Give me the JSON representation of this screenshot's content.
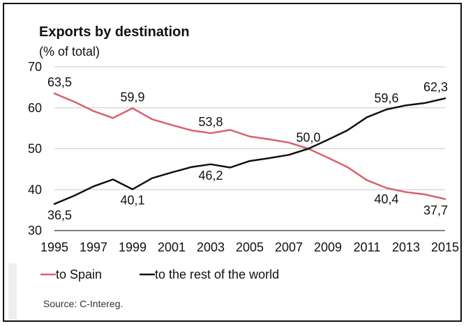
{
  "chart_data": {
    "type": "line",
    "title": "Exports by destination",
    "subtitle": "(% of total)",
    "ylim": [
      30,
      70
    ],
    "yticks": [
      30,
      40,
      50,
      60,
      70
    ],
    "xlim": [
      1995,
      2015
    ],
    "xticks": [
      "1995",
      "1997",
      "1999",
      "2001",
      "2003",
      "2005",
      "2007",
      "2009",
      "2011",
      "2013",
      "2015"
    ],
    "grid": true,
    "legend_position": "bottom-left",
    "series": [
      {
        "name": "to Spain",
        "color": "#d9606e",
        "points": [
          [
            1995,
            63.5
          ],
          [
            1996,
            61.5
          ],
          [
            1997,
            59.2
          ],
          [
            1998,
            57.5
          ],
          [
            1999,
            59.9
          ],
          [
            2000,
            57.2
          ],
          [
            2001,
            55.8
          ],
          [
            2002,
            54.5
          ],
          [
            2003,
            53.8
          ],
          [
            2004,
            54.6
          ],
          [
            2005,
            53.0
          ],
          [
            2006,
            52.3
          ],
          [
            2007,
            51.5
          ],
          [
            2008,
            50.0
          ],
          [
            2009,
            47.8
          ],
          [
            2010,
            45.5
          ],
          [
            2011,
            42.3
          ],
          [
            2012,
            40.4
          ],
          [
            2013,
            39.4
          ],
          [
            2014,
            38.8
          ],
          [
            2015,
            37.7
          ]
        ],
        "labels": [
          {
            "x": 1995,
            "y": 63.5,
            "text": "63,5"
          },
          {
            "x": 1999,
            "y": 59.9,
            "text": "59,9"
          },
          {
            "x": 2003,
            "y": 53.8,
            "text": "53,8"
          },
          {
            "x": 2012,
            "y": 40.4,
            "text": "40,4"
          },
          {
            "x": 2015,
            "y": 37.7,
            "text": "37,7"
          }
        ]
      },
      {
        "name": "to the rest of the world",
        "color": "#111111",
        "points": [
          [
            1995,
            36.5
          ],
          [
            1996,
            38.5
          ],
          [
            1997,
            40.8
          ],
          [
            1998,
            42.5
          ],
          [
            1999,
            40.1
          ],
          [
            2000,
            42.8
          ],
          [
            2001,
            44.2
          ],
          [
            2002,
            45.5
          ],
          [
            2003,
            46.2
          ],
          [
            2004,
            45.4
          ],
          [
            2005,
            47.0
          ],
          [
            2006,
            47.7
          ],
          [
            2007,
            48.5
          ],
          [
            2008,
            50.0
          ],
          [
            2009,
            52.2
          ],
          [
            2010,
            54.5
          ],
          [
            2011,
            57.7
          ],
          [
            2012,
            59.6
          ],
          [
            2013,
            60.6
          ],
          [
            2014,
            61.2
          ],
          [
            2015,
            62.3
          ]
        ],
        "labels": [
          {
            "x": 1995,
            "y": 36.5,
            "text": "36,5"
          },
          {
            "x": 1999,
            "y": 40.1,
            "text": "40,1"
          },
          {
            "x": 2003,
            "y": 46.2,
            "text": "46,2"
          },
          {
            "x": 2008,
            "y": 50.0,
            "text": "50,0"
          },
          {
            "x": 2012,
            "y": 59.6,
            "text": "59,6"
          },
          {
            "x": 2015,
            "y": 62.3,
            "text": "62,3"
          }
        ]
      }
    ],
    "source": "Source: C-Intereg."
  }
}
